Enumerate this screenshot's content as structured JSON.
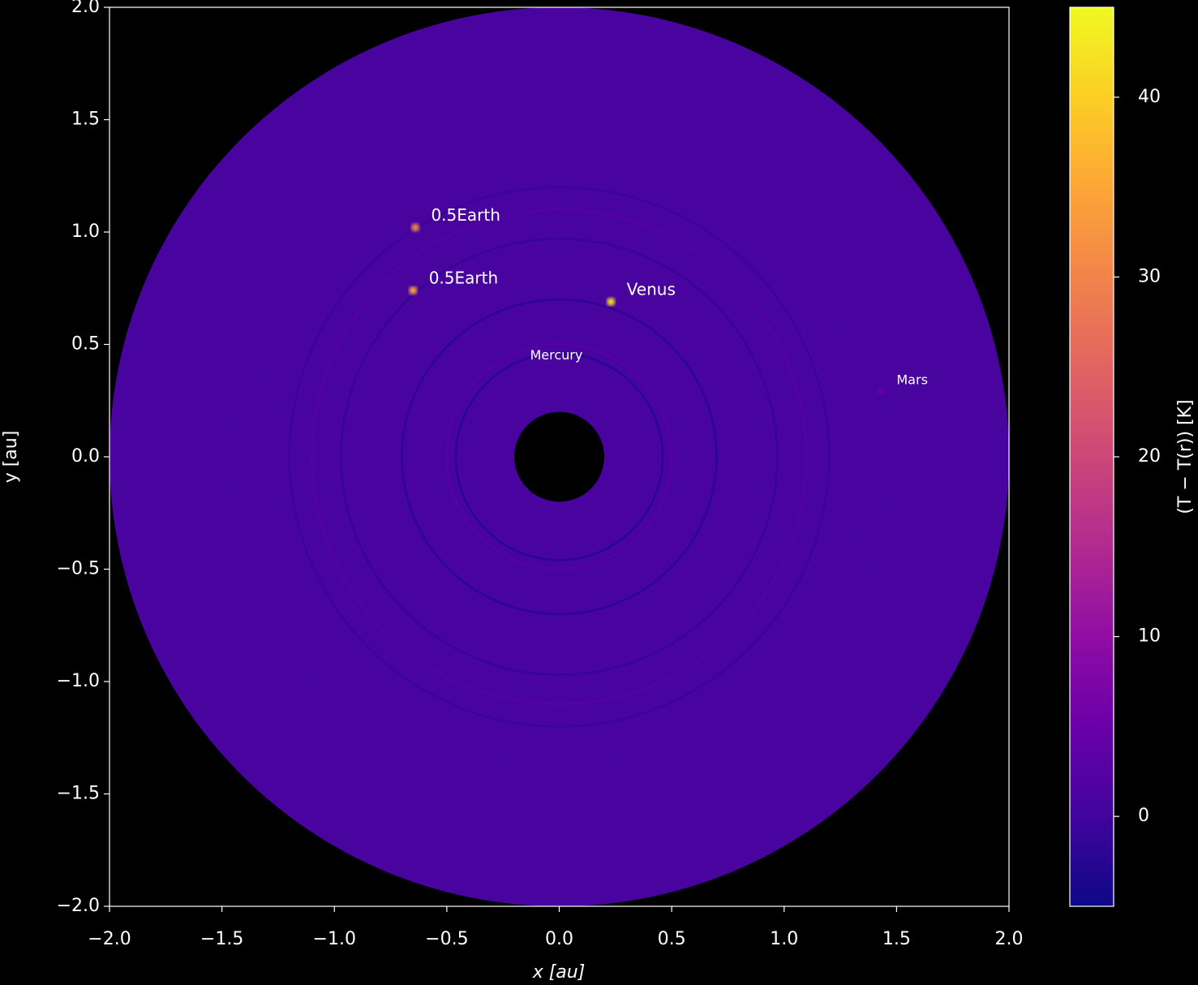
{
  "chart_data": {
    "type": "heatmap",
    "xlabel": "x [au]",
    "ylabel": "y [au]",
    "colorbar_label": "(T − T(r)) [K]",
    "colormap": "plasma",
    "xlim": [
      -2,
      2
    ],
    "ylim": [
      -2,
      2
    ],
    "xticks": [
      {
        "value": -2,
        "label": "−2.0"
      },
      {
        "value": -1.5,
        "label": "−1.5"
      },
      {
        "value": -1,
        "label": "−1.0"
      },
      {
        "value": -0.5,
        "label": "−0.5"
      },
      {
        "value": 0,
        "label": "0.0"
      },
      {
        "value": 0.5,
        "label": "0.5"
      },
      {
        "value": 1,
        "label": "1.0"
      },
      {
        "value": 1.5,
        "label": "1.5"
      },
      {
        "value": 2,
        "label": "2.0"
      }
    ],
    "yticks": [
      {
        "value": -2,
        "label": "−2.0"
      },
      {
        "value": -1.5,
        "label": "−1.5"
      },
      {
        "value": -1,
        "label": "−1.0"
      },
      {
        "value": -0.5,
        "label": "−0.5"
      },
      {
        "value": 0,
        "label": "0.0"
      },
      {
        "value": 0.5,
        "label": "0.5"
      },
      {
        "value": 1,
        "label": "1.0"
      },
      {
        "value": 1.5,
        "label": "1.5"
      },
      {
        "value": 2,
        "label": "2.0"
      }
    ],
    "clim": [
      -5,
      45
    ],
    "cticks": [
      0,
      10,
      20,
      30,
      40
    ],
    "disk": {
      "r_inner": 0.2,
      "r_outer": 2.0,
      "value": 1
    },
    "rings": [
      {
        "r": 0.46,
        "value": -3
      },
      {
        "r": 0.5,
        "value": 3
      },
      {
        "r": 0.7,
        "value": -2.5
      },
      {
        "r": 0.97,
        "value": -1.5
      },
      {
        "r": 1.1,
        "value": 3
      },
      {
        "r": 1.2,
        "value": -1
      },
      {
        "r": 1.42,
        "value": 2
      }
    ],
    "planets": [
      {
        "name": "0.5Earth",
        "x": -0.64,
        "y": 1.02,
        "value": 30
      },
      {
        "name": "0.5Earth",
        "x": -0.65,
        "y": 0.74,
        "value": 35
      },
      {
        "name": "Venus",
        "x": 0.23,
        "y": 0.69,
        "value": 42
      },
      {
        "name": "Mercury",
        "x": -0.2,
        "y": 0.4,
        "value": 1
      },
      {
        "name": "Mars",
        "x": 1.43,
        "y": 0.29,
        "value": 5
      }
    ]
  }
}
